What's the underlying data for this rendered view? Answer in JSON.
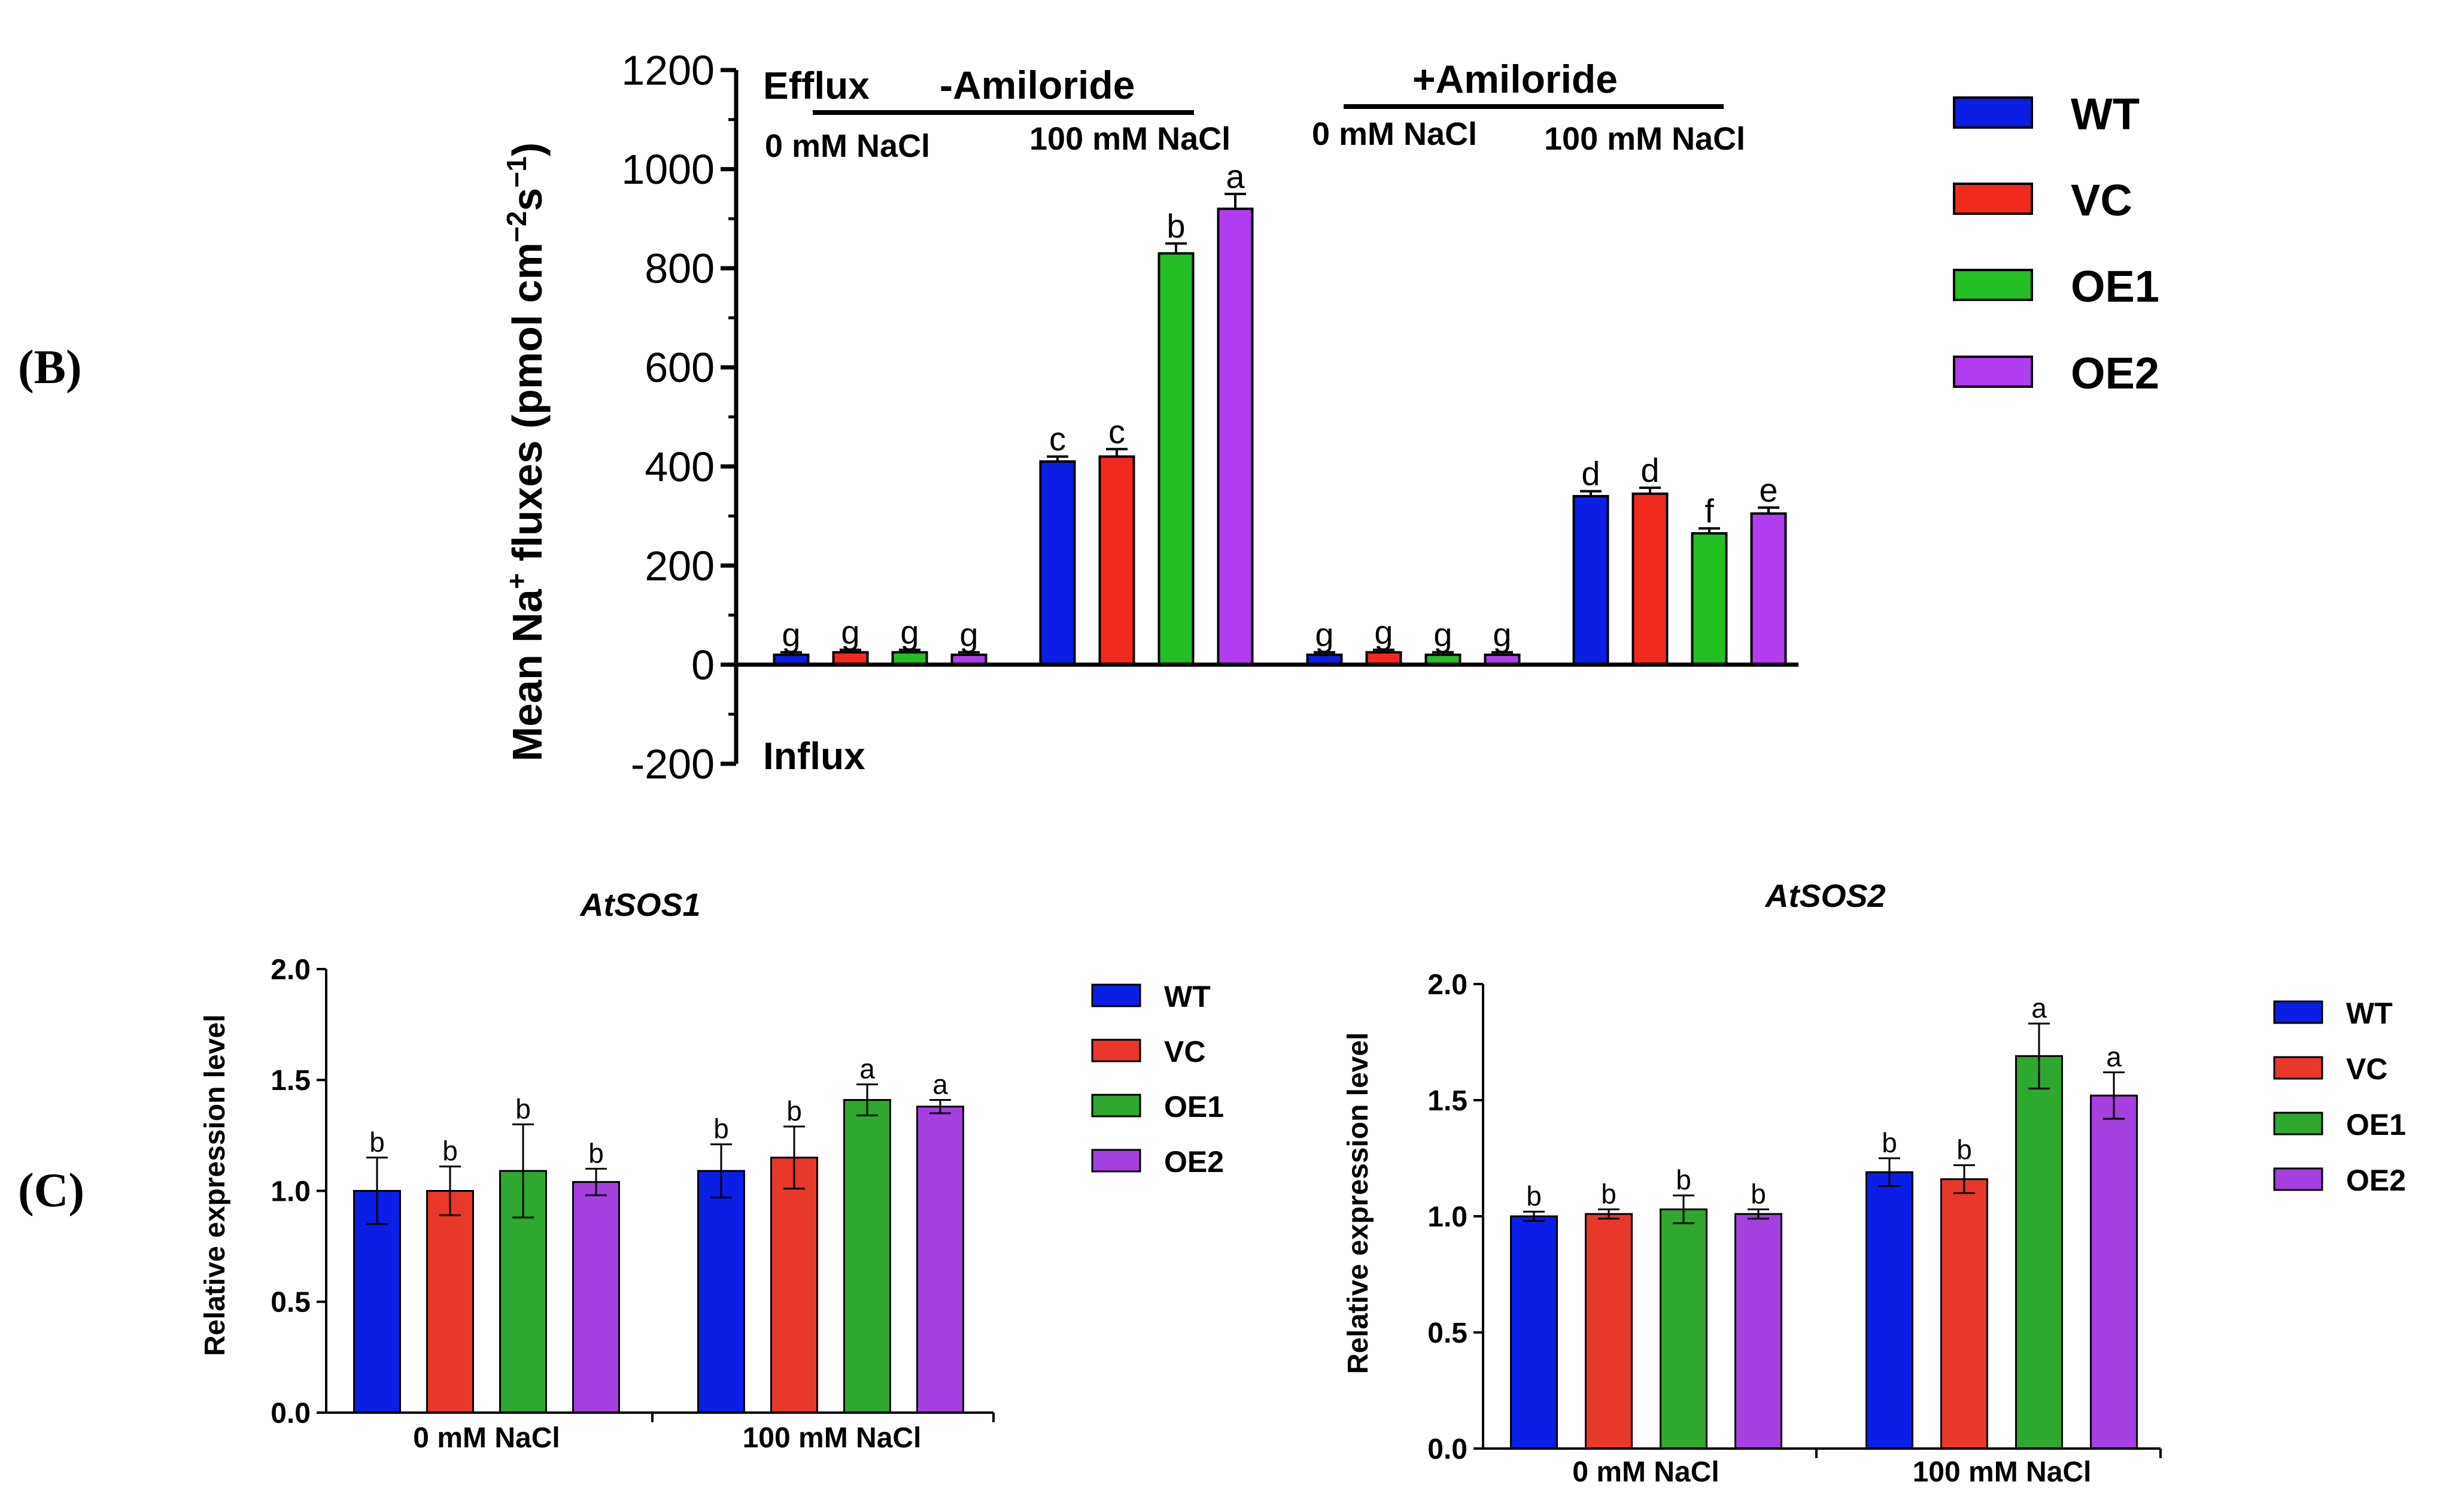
{
  "panel_labels": {
    "b": "(B)",
    "c": "(C)"
  },
  "colors": {
    "WT": "#0a1ee6",
    "VC": "#e8382a",
    "OE1": "#2ea82e",
    "OE2": "#a53fe0",
    "VC_b": "#f22a1e",
    "OE1_b": "#22c022",
    "OE2_b": "#b23cf0"
  },
  "chart_data": [
    {
      "id": "panelB",
      "type": "bar",
      "title": "",
      "ylabel": "Mean Na+ fluxes (pmol cm-2s-1)",
      "ylabel_parts": {
        "main": "Mean Na",
        "sup_plus": "+",
        "rest": " fluxes (pmol cm",
        "sup_m2": "−2",
        "s": "s",
        "sup_m1": "−1",
        "close": ")"
      },
      "ylim": [
        -200,
        1200
      ],
      "yticks": [
        -200,
        0,
        200,
        400,
        600,
        800,
        1000,
        1200
      ],
      "tick_labels": [
        "-200",
        "0",
        "200",
        "400",
        "600",
        "800",
        "1000",
        "1200"
      ],
      "legend": [
        "WT",
        "VC",
        "OE1",
        "OE2"
      ],
      "annotations": {
        "efflux": "Efflux",
        "influx": "Influx",
        "minus_amiloride": "-Amiloride",
        "plus_amiloride": "+Amiloride",
        "g1": "0 mM NaCl",
        "g2": "100 mM NaCl",
        "g3": "0 mM NaCl",
        "g4": "100 mM NaCl"
      },
      "series": [
        {
          "name": "WT",
          "values": [
            20,
            410,
            20,
            340
          ],
          "errors": [
            5,
            10,
            5,
            10
          ],
          "letters": [
            "g",
            "c",
            "g",
            "d"
          ]
        },
        {
          "name": "VC",
          "values": [
            25,
            420,
            25,
            345
          ],
          "errors": [
            5,
            15,
            5,
            12
          ],
          "letters": [
            "g",
            "c",
            "g",
            "d"
          ]
        },
        {
          "name": "OE1",
          "values": [
            25,
            830,
            20,
            265
          ],
          "errors": [
            5,
            20,
            5,
            10
          ],
          "letters": [
            "g",
            "b",
            "g",
            "f"
          ]
        },
        {
          "name": "OE2",
          "values": [
            20,
            920,
            20,
            305
          ],
          "errors": [
            5,
            30,
            5,
            12
          ],
          "letters": [
            "g",
            "a",
            "g",
            "e"
          ]
        }
      ]
    },
    {
      "id": "sos1",
      "type": "bar",
      "title": "AtSOS1",
      "ylabel": "Relative expression level",
      "ylim": [
        0,
        2
      ],
      "yticks": [
        0,
        0.5,
        1,
        1.5,
        2
      ],
      "tick_labels": [
        "0.0",
        "0.5",
        "1.0",
        "1.5",
        "2.0"
      ],
      "categories": [
        "0 mM NaCl",
        "100 mM NaCl"
      ],
      "legend": [
        "WT",
        "VC",
        "OE1",
        "OE2"
      ],
      "series": [
        {
          "name": "WT",
          "values": [
            1.0,
            1.09
          ],
          "errors": [
            0.15,
            0.12
          ],
          "letters": [
            "b",
            "b"
          ]
        },
        {
          "name": "VC",
          "values": [
            1.0,
            1.15
          ],
          "errors": [
            0.11,
            0.14
          ],
          "letters": [
            "b",
            "b"
          ]
        },
        {
          "name": "OE1",
          "values": [
            1.09,
            1.41
          ],
          "errors": [
            0.21,
            0.07
          ],
          "letters": [
            "b",
            "a"
          ]
        },
        {
          "name": "OE2",
          "values": [
            1.04,
            1.38
          ],
          "errors": [
            0.06,
            0.03
          ],
          "letters": [
            "b",
            "a"
          ]
        }
      ]
    },
    {
      "id": "sos2",
      "type": "bar",
      "title": "AtSOS2",
      "ylabel": "Relative expression level",
      "ylim": [
        0,
        2
      ],
      "yticks": [
        0,
        0.5,
        1,
        1.5,
        2
      ],
      "tick_labels": [
        "0.0",
        "0.5",
        "1.0",
        "1.5",
        "2.0"
      ],
      "categories": [
        "0 mM NaCl",
        "100 mM NaCl"
      ],
      "legend": [
        "WT",
        "VC",
        "OE1",
        "OE2"
      ],
      "series": [
        {
          "name": "WT",
          "values": [
            1.0,
            1.19
          ],
          "errors": [
            0.02,
            0.06
          ],
          "letters": [
            "b",
            "b"
          ]
        },
        {
          "name": "VC",
          "values": [
            1.01,
            1.16
          ],
          "errors": [
            0.02,
            0.06
          ],
          "letters": [
            "b",
            "b"
          ]
        },
        {
          "name": "OE1",
          "values": [
            1.03,
            1.69
          ],
          "errors": [
            0.06,
            0.14
          ],
          "letters": [
            "b",
            "a"
          ]
        },
        {
          "name": "OE2",
          "values": [
            1.01,
            1.52
          ],
          "errors": [
            0.02,
            0.1
          ],
          "letters": [
            "b",
            "a"
          ]
        }
      ]
    }
  ]
}
